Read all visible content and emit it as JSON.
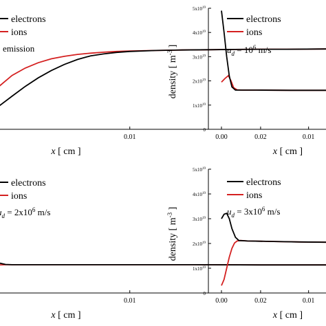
{
  "chart_data": [
    {
      "type": "line",
      "panel": "top-left",
      "xlabel": "x [ cm ]",
      "ylabel": "",
      "xlim": [
        -0.0015,
        0.025
      ],
      "ylim": [
        0,
        5
      ],
      "x_ticks": [
        "0.01",
        "0.02"
      ],
      "x_tick_values": [
        0.01,
        0.02
      ],
      "annotation": "emission",
      "legend": {
        "position": "top-left"
      },
      "series": [
        {
          "name": "electrons",
          "color": "#000000",
          "x": [
            -0.0015,
            0.0,
            0.001,
            0.002,
            0.003,
            0.004,
            0.005,
            0.006,
            0.007,
            0.008,
            0.009,
            0.01,
            0.012,
            0.014,
            0.016,
            0.018,
            0.02,
            0.022,
            0.025
          ],
          "y": [
            0.6,
            0.95,
            1.35,
            1.75,
            2.1,
            2.4,
            2.65,
            2.85,
            3.0,
            3.08,
            3.14,
            3.18,
            3.22,
            3.24,
            3.25,
            3.26,
            3.27,
            3.27,
            3.28
          ]
        },
        {
          "name": "ions",
          "color": "#d42020",
          "x": [
            -0.0015,
            0.0,
            0.001,
            0.002,
            0.003,
            0.004,
            0.005,
            0.006,
            0.007,
            0.008,
            0.009,
            0.01,
            0.012,
            0.014,
            0.016,
            0.018,
            0.02,
            0.022,
            0.025
          ],
          "y": [
            1.3,
            1.75,
            2.2,
            2.5,
            2.72,
            2.88,
            2.98,
            3.06,
            3.11,
            3.15,
            3.18,
            3.2,
            3.22,
            3.24,
            3.25,
            3.26,
            3.27,
            3.27,
            3.28
          ]
        }
      ]
    },
    {
      "type": "line",
      "panel": "top-right",
      "xlabel": "x [ cm ]",
      "ylabel": "density [ m^-3 ]",
      "xlim": [
        -0.0015,
        0.012
      ],
      "ylim": [
        0,
        5e+19
      ],
      "y_ticks": [
        "0",
        "1x10^19",
        "2x10^19",
        "3x10^19",
        "4x10^19",
        "5x10^19"
      ],
      "y_tick_values": [
        0,
        1e+19,
        2e+19,
        3e+19,
        4e+19,
        5e+19
      ],
      "x_ticks": [
        "0.00",
        "0.01"
      ],
      "x_tick_values": [
        0.0,
        0.01
      ],
      "annotation": "u_d = 10^6 m/s",
      "legend": {
        "position": "top-right"
      },
      "series": [
        {
          "name": "electrons",
          "color": "#000000",
          "x": [
            0.0,
            0.0003,
            0.0006,
            0.0009,
            0.0012,
            0.0016,
            0.0022,
            0.004,
            0.008,
            0.012
          ],
          "y": [
            4.9e+19,
            4e+19,
            3e+19,
            2.2e+19,
            1.75e+19,
            1.62e+19,
            1.62e+19,
            1.62e+19,
            1.61e+19,
            1.61e+19
          ]
        },
        {
          "name": "ions",
          "color": "#d42020",
          "x": [
            0.0,
            0.0004,
            0.0008,
            0.0011,
            0.0014,
            0.0018,
            0.0024,
            0.004,
            0.008,
            0.012
          ],
          "y": [
            1.95e+19,
            2.1e+19,
            2.22e+19,
            2e+19,
            1.72e+19,
            1.63e+19,
            1.62e+19,
            1.62e+19,
            1.61e+19,
            1.61e+19
          ]
        }
      ]
    },
    {
      "type": "line",
      "panel": "bottom-left",
      "xlabel": "x [ cm ]",
      "ylabel": "",
      "xlim": [
        -0.0015,
        0.025
      ],
      "ylim": [
        0,
        5
      ],
      "x_ticks": [
        "0.01",
        "0.02"
      ],
      "x_tick_values": [
        0.01,
        0.02
      ],
      "annotation": "u_d = 2x10^6 m/s",
      "legend": {
        "position": "top-left"
      },
      "series": [
        {
          "name": "electrons",
          "color": "#000000",
          "x": [
            -0.0015,
            -0.0005,
            0.0,
            0.0005,
            0.001,
            0.003,
            0.006,
            0.01,
            0.015,
            0.02,
            0.025
          ],
          "y": [
            1.2,
            1.28,
            1.2,
            1.14,
            1.13,
            1.13,
            1.13,
            1.13,
            1.13,
            1.12,
            1.12
          ]
        },
        {
          "name": "ions",
          "color": "#d42020",
          "x": [
            -0.0015,
            -0.0005,
            0.0,
            0.0005,
            0.001,
            0.003,
            0.006,
            0.01,
            0.015,
            0.02,
            0.025
          ],
          "y": [
            1.1,
            1.1,
            1.12,
            1.13,
            1.13,
            1.13,
            1.13,
            1.13,
            1.13,
            1.12,
            1.12
          ]
        }
      ]
    },
    {
      "type": "line",
      "panel": "bottom-right",
      "xlabel": "x [ cm ]",
      "ylabel": "density [ m^-3 ]",
      "xlim": [
        -0.0015,
        0.012
      ],
      "ylim": [
        0,
        5e+19
      ],
      "y_ticks": [
        "0",
        "1x10^19",
        "2x10^19",
        "3x10^19",
        "4x10^19",
        "5x10^19"
      ],
      "y_tick_values": [
        0,
        1e+19,
        2e+19,
        3e+19,
        4e+19,
        5e+19
      ],
      "x_ticks": [
        "0.00",
        "0.01"
      ],
      "x_tick_values": [
        0.0,
        0.01
      ],
      "annotation": "u_d = 3x10^6 m/s",
      "legend": {
        "position": "top-right"
      },
      "series": [
        {
          "name": "electrons",
          "color": "#000000",
          "x": [
            0.0,
            0.0003,
            0.0006,
            0.0009,
            0.0012,
            0.0016,
            0.002,
            0.003,
            0.006,
            0.009,
            0.012
          ],
          "y": [
            3e+19,
            3.18e+19,
            3.22e+19,
            3e+19,
            2.6e+19,
            2.25e+19,
            2.12e+19,
            2.1e+19,
            2.08e+19,
            2.06e+19,
            2.05e+19
          ]
        },
        {
          "name": "ions",
          "color": "#d42020",
          "x": [
            0.0,
            0.0003,
            0.0006,
            0.0009,
            0.0012,
            0.0015,
            0.0018,
            0.0022,
            0.003,
            0.006,
            0.009,
            0.012
          ],
          "y": [
            3e+18,
            5.5e+18,
            1e+19,
            1.45e+19,
            1.8e+19,
            2.02e+19,
            2.1e+19,
            2.12e+19,
            2.1e+19,
            2.08e+19,
            2.06e+19,
            2.05e+19
          ]
        }
      ]
    }
  ],
  "text": {
    "electrons": "electrons",
    "ions": "ions",
    "emission": "emission",
    "xlabel_x": "x",
    "xlabel_unit": "[ cm ]",
    "ylabel_main": "density [ m",
    "ylabel_exp": "-3",
    "ylabel_close": " ]",
    "u": "u",
    "u_sub": "d",
    "annot_tr_eq": " = 10",
    "annot_tr_exp": "6",
    "annot_tr_unit": " m/s",
    "annot_bl_eq": " = 2x10",
    "annot_bl_exp": "6",
    "annot_bl_unit": " m/s",
    "annot_br_eq": " = 3x10",
    "annot_br_exp": "6",
    "annot_br_unit": " m/s",
    "ytick_exp": "19"
  }
}
